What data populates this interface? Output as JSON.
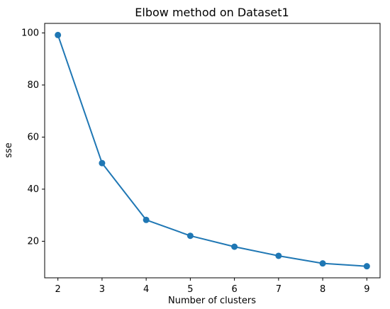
{
  "chart_data": {
    "type": "line",
    "title": "Elbow method on Dataset1",
    "xlabel": "Number of clusters",
    "ylabel": "sse",
    "x": [
      2,
      3,
      4,
      5,
      6,
      7,
      8,
      9
    ],
    "series": [
      {
        "values": [
          99.2,
          50.0,
          28.2,
          22.1,
          17.9,
          14.4,
          11.5,
          10.4
        ],
        "color": "#1f77b4",
        "marker": "circle"
      }
    ],
    "xticks": [
      "2",
      "3",
      "4",
      "5",
      "6",
      "7",
      "8",
      "9"
    ],
    "yticks": [
      "20",
      "40",
      "60",
      "80",
      "100"
    ],
    "xlim": [
      1.7,
      9.3
    ],
    "ylim": [
      5.96,
      103.66
    ],
    "grid": false,
    "legend": "none"
  }
}
